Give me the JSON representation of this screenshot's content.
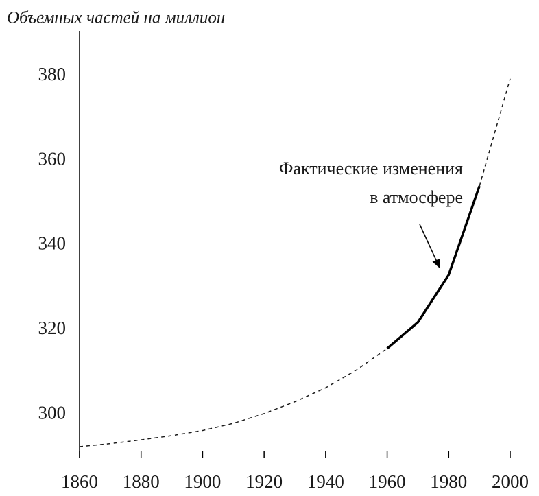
{
  "chart_data": {
    "type": "line",
    "ylabel": "Объемных частей на миллион",
    "annotation": [
      "Фактические изменения",
      "в атмосфере"
    ],
    "x": [
      1860,
      1870,
      1880,
      1890,
      1900,
      1910,
      1920,
      1930,
      1940,
      1950,
      1960,
      1970,
      1980,
      1990,
      2000
    ],
    "series": [
      {
        "color": "#1a1a1a",
        "style": "dashed",
        "values": [
          292.4,
          293.1,
          294,
          295,
          296.2,
          297.9,
          300.2,
          303,
          306.3,
          310.5,
          315.6,
          null,
          null,
          354,
          379.4
        ]
      },
      {
        "color": "#000000",
        "style": "solid",
        "values": [
          null,
          null,
          null,
          null,
          null,
          null,
          null,
          null,
          null,
          null,
          315.6,
          321.8,
          333,
          354,
          null
        ]
      }
    ],
    "xlim": [
      1860,
      2000
    ],
    "xticks": [
      1860,
      1880,
      1900,
      1920,
      1940,
      1960,
      1980,
      2000
    ],
    "ylim": [
      289.8,
      390.7
    ],
    "yticks": [
      300,
      320,
      340,
      360,
      380
    ]
  }
}
